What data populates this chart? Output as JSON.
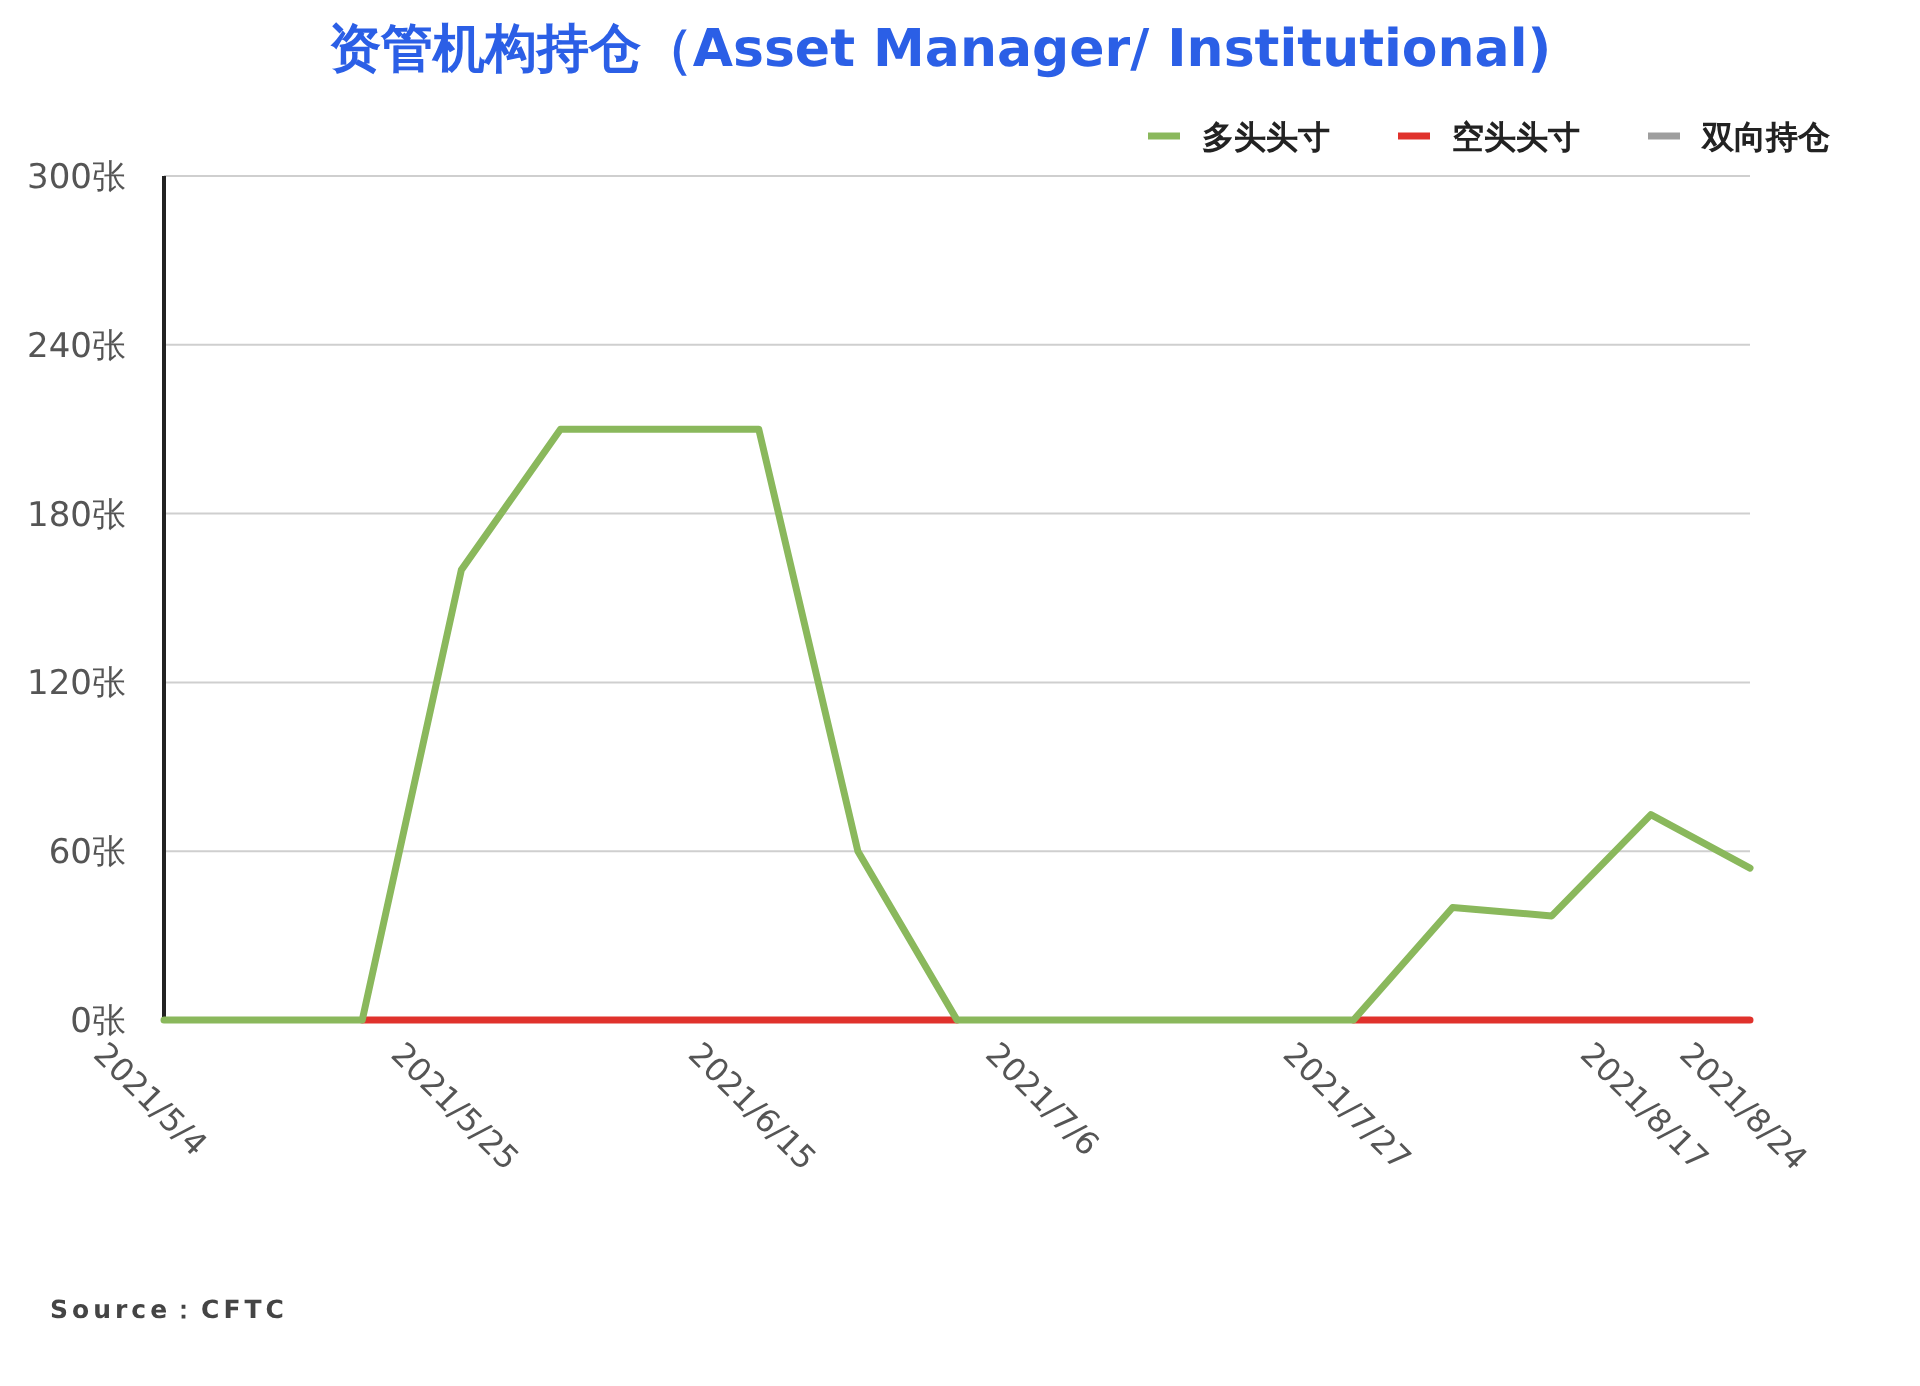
{
  "chart_data": {
    "type": "line",
    "title": "资管机构持仓（Asset Manager/ Institutional)",
    "categories": [
      "2021/5/4",
      null,
      null,
      "2021/5/25",
      null,
      null,
      "2021/6/15",
      null,
      null,
      "2021/7/6",
      null,
      null,
      "2021/7/27",
      null,
      null,
      "2021/8/17",
      "2021/8/24"
    ],
    "series": [
      {
        "name": "多头头寸",
        "color": "#8ab85c",
        "values": [
          0,
          0,
          0,
          160,
          210,
          210,
          210,
          60,
          0,
          0,
          0,
          0,
          0,
          40,
          37,
          73,
          54
        ]
      },
      {
        "name": "空头头寸",
        "color": "#e0322c",
        "values": [
          null,
          null,
          0,
          0,
          0,
          0,
          0,
          0,
          0,
          null,
          null,
          null,
          0,
          0,
          0,
          0,
          0
        ]
      },
      {
        "name": "双向持仓",
        "color": "#9e9e9e",
        "values": [
          null,
          null,
          null,
          null,
          null,
          null,
          null,
          null,
          null,
          null,
          null,
          null,
          null,
          null,
          null,
          null,
          null
        ]
      }
    ],
    "ylim": [
      0,
      300
    ],
    "yticks": [
      {
        "value": 0,
        "label": "0张"
      },
      {
        "value": 60,
        "label": "60张"
      },
      {
        "value": 120,
        "label": "120张"
      },
      {
        "value": 180,
        "label": "180张"
      },
      {
        "value": 240,
        "label": "240张"
      },
      {
        "value": 300,
        "label": "300张"
      }
    ],
    "grid": "y",
    "legend": "top right",
    "annotations": [
      "Source：CFTC"
    ]
  }
}
